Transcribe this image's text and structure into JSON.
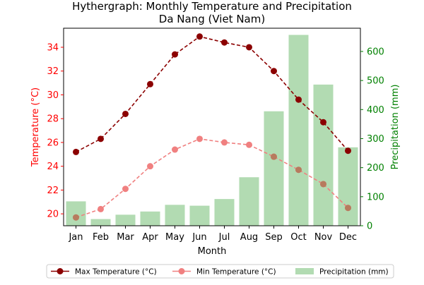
{
  "chart_data": {
    "type": "line",
    "title": "Hythergraph: Monthly Temperature and Precipitation",
    "subtitle": "Da Nang (Viet Nam)",
    "xlabel": "Month",
    "ylabel_left": "Temperature (°C)",
    "ylabel_right": "Precipitation (mm)",
    "categories": [
      "Jan",
      "Feb",
      "Mar",
      "Apr",
      "May",
      "Jun",
      "Jul",
      "Aug",
      "Sep",
      "Oct",
      "Nov",
      "Dec"
    ],
    "ylim_left": [
      19.0,
      35.6
    ],
    "yticks_left": [
      "20",
      "22",
      "24",
      "26",
      "28",
      "30",
      "32",
      "34"
    ],
    "ylim_right": [
      0,
      680
    ],
    "yticks_right": [
      "0",
      "100",
      "200",
      "300",
      "400",
      "500",
      "600"
    ],
    "series": [
      {
        "name": "Max Temperature (°C)",
        "kind": "line",
        "axis": "left",
        "color": "#8b0000",
        "values": [
          25.2,
          26.3,
          28.4,
          30.9,
          33.4,
          34.9,
          34.4,
          34.0,
          32.0,
          29.6,
          27.7,
          25.3
        ]
      },
      {
        "name": "Min Temperature (°C)",
        "kind": "line",
        "axis": "left",
        "color": "#f08080",
        "values": [
          19.7,
          20.4,
          22.1,
          24.0,
          25.4,
          26.3,
          26.0,
          25.8,
          24.8,
          23.7,
          22.5,
          20.5
        ]
      },
      {
        "name": "Precipitation (mm)",
        "kind": "bar",
        "axis": "right",
        "color": "#b2dbb2",
        "values": [
          84,
          23,
          38,
          49,
          72,
          69,
          92,
          167,
          394,
          657,
          486,
          270
        ]
      }
    ],
    "legend_position": "bottom",
    "grid": false
  }
}
